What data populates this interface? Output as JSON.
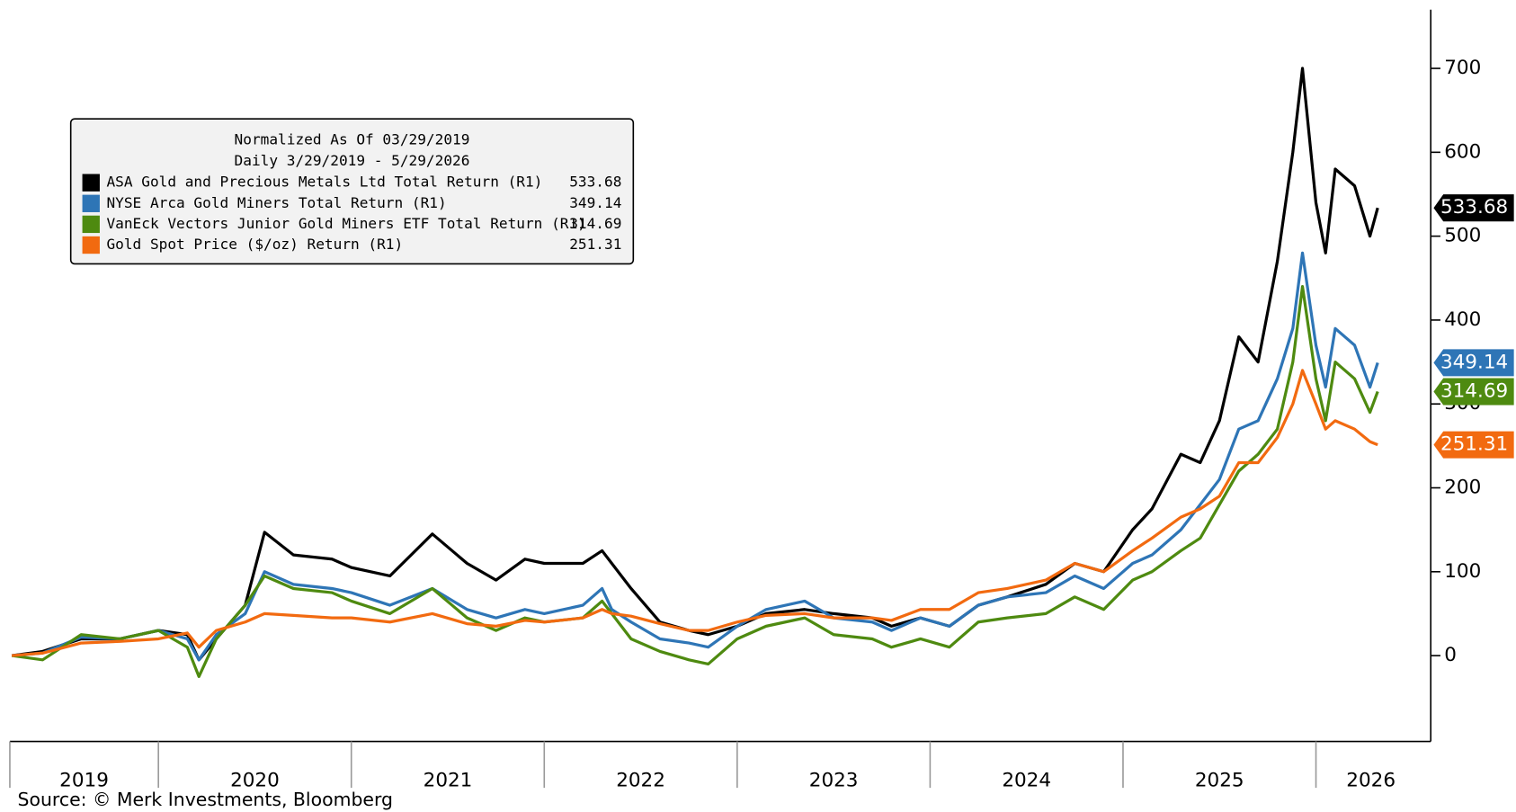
{
  "chart_data": {
    "type": "line",
    "legend_title": [
      "Normalized As Of 03/29/2019",
      "Daily 3/29/2019 - 5/29/2026"
    ],
    "legend": "upper left",
    "y_axis_side": "right",
    "source": "Source: © Merk Investments, Bloomberg",
    "x": [
      2019.24,
      2019.4,
      2019.6,
      2019.8,
      2020.0,
      2020.15,
      2020.21,
      2020.3,
      2020.45,
      2020.55,
      2020.7,
      2020.9,
      2021.0,
      2021.2,
      2021.42,
      2021.6,
      2021.75,
      2021.9,
      2022.0,
      2022.2,
      2022.3,
      2022.35,
      2022.45,
      2022.6,
      2022.75,
      2022.85,
      2023.0,
      2023.15,
      2023.35,
      2023.5,
      2023.7,
      2023.8,
      2023.95,
      2024.1,
      2024.25,
      2024.4,
      2024.6,
      2024.75,
      2024.9,
      2025.05,
      2025.15,
      2025.3,
      2025.4,
      2025.5,
      2025.6,
      2025.7,
      2025.8,
      2025.88,
      2025.93,
      2026.0,
      2026.05,
      2026.1,
      2026.2,
      2026.28,
      2026.32
    ],
    "series": [
      {
        "name": "ASA Gold and Precious Metals Ltd Total Return (R1)",
        "color": "#000000",
        "values": [
          0,
          5,
          20,
          20,
          30,
          25,
          -5,
          20,
          60,
          147,
          120,
          115,
          105,
          95,
          145,
          110,
          90,
          115,
          110,
          110,
          125,
          110,
          80,
          40,
          30,
          25,
          35,
          50,
          55,
          50,
          45,
          35,
          45,
          35,
          60,
          70,
          85,
          110,
          100,
          150,
          175,
          240,
          230,
          280,
          380,
          350,
          470,
          600,
          700,
          540,
          480,
          580,
          560,
          500,
          533.68
        ]
      },
      {
        "name": "NYSE Arca Gold Miners Total Return (R1)",
        "color": "#2e75b6",
        "values": [
          0,
          3,
          22,
          20,
          30,
          20,
          -5,
          25,
          50,
          100,
          85,
          80,
          75,
          60,
          80,
          55,
          45,
          55,
          50,
          60,
          80,
          55,
          40,
          20,
          15,
          10,
          35,
          55,
          65,
          45,
          40,
          30,
          45,
          35,
          60,
          70,
          75,
          95,
          80,
          110,
          120,
          150,
          180,
          210,
          270,
          280,
          330,
          390,
          480,
          370,
          320,
          390,
          370,
          320,
          349.14
        ]
      },
      {
        "name": "VanEck Vectors Junior Gold Miners ETF Total Return (R1)",
        "color": "#4e8a10",
        "values": [
          0,
          -5,
          25,
          20,
          30,
          10,
          -25,
          20,
          60,
          95,
          80,
          75,
          65,
          50,
          80,
          45,
          30,
          45,
          40,
          45,
          65,
          50,
          20,
          5,
          -5,
          -10,
          20,
          35,
          45,
          25,
          20,
          10,
          20,
          10,
          40,
          45,
          50,
          70,
          55,
          90,
          100,
          125,
          140,
          180,
          220,
          240,
          270,
          350,
          440,
          330,
          280,
          350,
          330,
          290,
          314.69
        ]
      },
      {
        "name": "Gold Spot Price ($/oz) Return (R1)",
        "color": "#f26a10",
        "values": [
          0,
          3,
          15,
          17,
          20,
          27,
          10,
          30,
          40,
          50,
          48,
          45,
          45,
          40,
          50,
          38,
          35,
          42,
          40,
          45,
          55,
          50,
          47,
          38,
          30,
          30,
          40,
          48,
          50,
          45,
          45,
          42,
          55,
          55,
          75,
          80,
          90,
          110,
          100,
          125,
          140,
          165,
          175,
          190,
          230,
          230,
          260,
          300,
          340,
          300,
          270,
          280,
          270,
          255,
          251.31
        ]
      }
    ],
    "xlim": [
      2019.23,
      2026.57
    ],
    "xticks": [
      {
        "value": 2019,
        "label": "2019"
      },
      {
        "value": 2020,
        "label": "2020"
      },
      {
        "value": 2021,
        "label": "2021"
      },
      {
        "value": 2022,
        "label": "2022"
      },
      {
        "value": 2023,
        "label": "2023"
      },
      {
        "value": 2024,
        "label": "2024"
      },
      {
        "value": 2025,
        "label": "2025"
      },
      {
        "value": 2026,
        "label": "2026"
      }
    ],
    "ylim": [
      -100,
      770
    ],
    "yticks": [
      0,
      100,
      200,
      300,
      400,
      500,
      600,
      700
    ]
  }
}
